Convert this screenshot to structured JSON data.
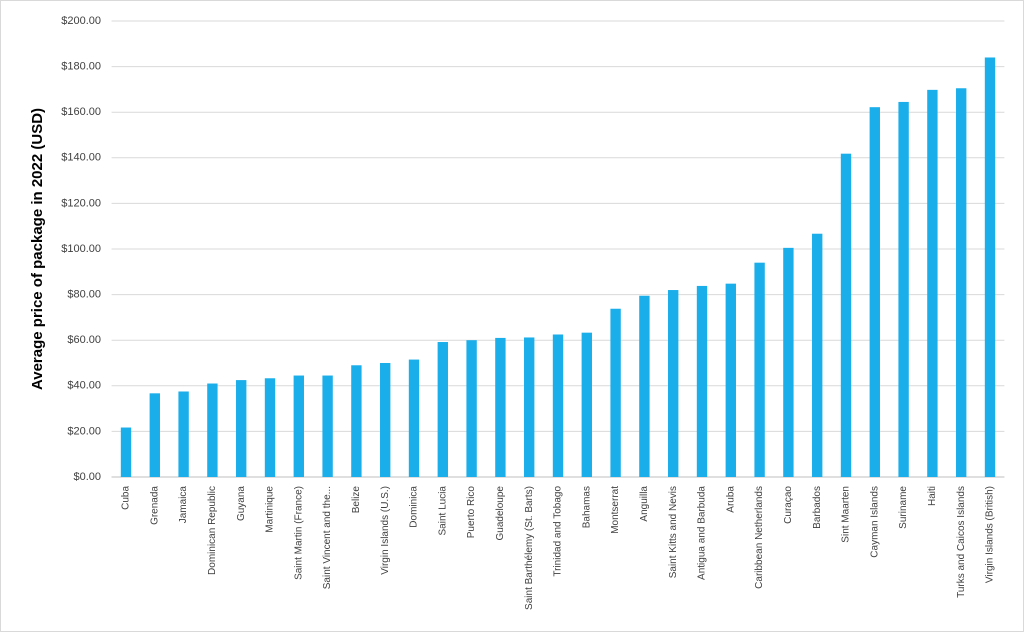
{
  "chart_data": {
    "type": "bar",
    "y_label": "Average price of package in 2022 (USD)",
    "categories": [
      "Cuba",
      "Grenada",
      "Jamaica",
      "Dominican Republic",
      "Guyana",
      "Martinique",
      "Saint Martin (France)",
      "Saint Vincent and the...",
      "Belize",
      "Virgin Islands (U.S.)",
      "Dominica",
      "Saint Lucia",
      "Puerto Rico",
      "Guadeloupe",
      "Saint Barthélemy (St. Barts)",
      "Trinidad and Tobago",
      "Bahamas",
      "Montserrat",
      "Anguilla",
      "Saint Kitts and Nevis",
      "Antigua and Barbuda",
      "Aruba",
      "Caribbean Netherlands",
      "Curaçao",
      "Barbados",
      "Sint Maarten",
      "Cayman Islands",
      "Suriname",
      "Haiti",
      "Turks and Caicos Islands",
      "Virgin Islands (British)"
    ],
    "values": [
      21.7,
      36.7,
      37.5,
      41,
      42.5,
      43.3,
      44.5,
      44.5,
      49,
      50,
      51.5,
      59.2,
      60,
      61,
      61.2,
      62.5,
      63.3,
      73.8,
      79.5,
      82,
      83.8,
      84.8,
      94,
      100.5,
      106.7,
      141.8,
      162.2,
      164.5,
      169.8,
      170.5,
      184
    ],
    "color": "#1aaeea",
    "ylim": [
      0,
      200
    ],
    "yticks": [
      {
        "value": 0,
        "label": "$0.00"
      },
      {
        "value": 20,
        "label": "$20.00"
      },
      {
        "value": 40,
        "label": "$40.00"
      },
      {
        "value": 60,
        "label": "$60.00"
      },
      {
        "value": 80,
        "label": "$80.00"
      },
      {
        "value": 100,
        "label": "$100.00"
      },
      {
        "value": 120,
        "label": "$120.00"
      },
      {
        "value": 140,
        "label": "$140.00"
      },
      {
        "value": 160,
        "label": "$160.00"
      },
      {
        "value": 180,
        "label": "$180.00"
      },
      {
        "value": 200,
        "label": "$200.00"
      }
    ],
    "grid": true
  }
}
